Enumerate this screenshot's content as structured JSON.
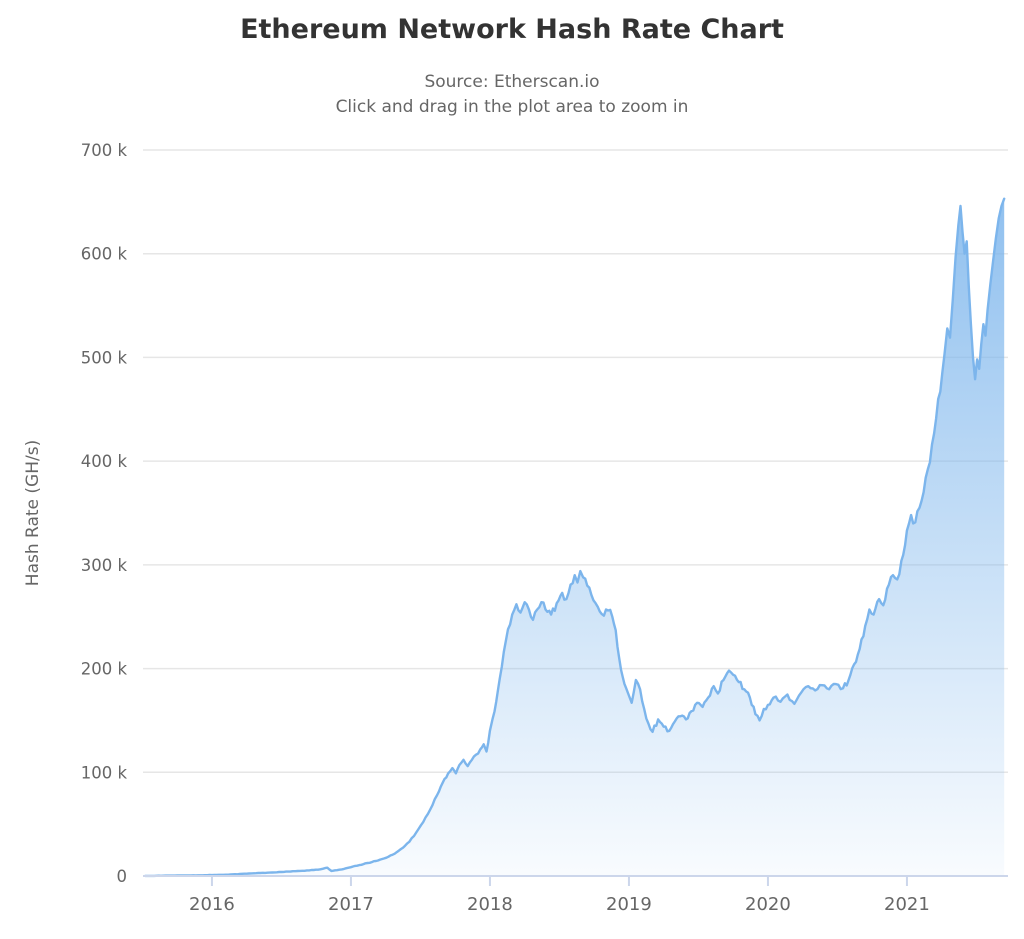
{
  "header": {
    "title": "Ethereum Network Hash Rate Chart",
    "subtitle_source": "Source: Etherscan.io",
    "subtitle_hint": "Click and drag in the plot area to zoom in"
  },
  "colors": {
    "series_line": "#7cb5ec",
    "fill_top": "rgba(124,181,236,0.9)",
    "fill_bottom": "rgba(124,181,236,0.05)",
    "gridline": "#e6e6e6",
    "axis_line": "#ccd6eb",
    "tick_mark": "#ccd6eb",
    "label_text": "#666666",
    "title_text": "#333333",
    "background": "#ffffff"
  },
  "chart_data": {
    "type": "area",
    "title": "Ethereum Network Hash Rate Chart",
    "subtitle": [
      "Source: Etherscan.io",
      "Click and drag in the plot area to zoom in"
    ],
    "xlabel": "",
    "ylabel": "Hash Rate (GH/s)",
    "legend": "none",
    "grid": "horizontal",
    "x_unit": "decimal year",
    "values_unit": "thousand GH/s (axis shows k)",
    "xlim": [
      2015.504,
      2021.727
    ],
    "ylim": [
      0,
      700
    ],
    "x_ticks": [
      {
        "value": 2016,
        "label": "2016"
      },
      {
        "value": 2017,
        "label": "2017"
      },
      {
        "value": 2018,
        "label": "2018"
      },
      {
        "value": 2019,
        "label": "2019"
      },
      {
        "value": 2020,
        "label": "2020"
      },
      {
        "value": 2021,
        "label": "2021"
      }
    ],
    "y_ticks": [
      {
        "value": 0,
        "label": "0"
      },
      {
        "value": 100,
        "label": "100 k"
      },
      {
        "value": 200,
        "label": "200 k"
      },
      {
        "value": 300,
        "label": "300 k"
      },
      {
        "value": 400,
        "label": "400 k"
      },
      {
        "value": 500,
        "label": "500 k"
      },
      {
        "value": 600,
        "label": "600 k"
      },
      {
        "value": 700,
        "label": "700 k"
      }
    ],
    "series": [
      {
        "name": "Hash Rate",
        "color": "#7cb5ec",
        "points": [
          [
            2015.52,
            0.1
          ],
          [
            2015.6,
            0.2
          ],
          [
            2015.7,
            0.35
          ],
          [
            2015.8,
            0.5
          ],
          [
            2015.9,
            0.65
          ],
          [
            2016.0,
            0.9
          ],
          [
            2016.1,
            1.3
          ],
          [
            2016.2,
            1.9
          ],
          [
            2016.3,
            2.6
          ],
          [
            2016.4,
            3.2
          ],
          [
            2016.5,
            3.9
          ],
          [
            2016.6,
            4.6
          ],
          [
            2016.7,
            5.4
          ],
          [
            2016.78,
            6.5
          ],
          [
            2016.83,
            8.0
          ],
          [
            2016.86,
            4.8
          ],
          [
            2016.9,
            5.6
          ],
          [
            2016.95,
            6.8
          ],
          [
            2017.0,
            8.5
          ],
          [
            2017.06,
            10.5
          ],
          [
            2017.12,
            12.5
          ],
          [
            2017.18,
            14.5
          ],
          [
            2017.24,
            17
          ],
          [
            2017.3,
            20.5
          ],
          [
            2017.36,
            26
          ],
          [
            2017.42,
            33
          ],
          [
            2017.47,
            42
          ],
          [
            2017.52,
            52
          ],
          [
            2017.57,
            64
          ],
          [
            2017.62,
            78
          ],
          [
            2017.66,
            90
          ],
          [
            2017.7,
            99
          ],
          [
            2017.73,
            104
          ],
          [
            2017.755,
            99
          ],
          [
            2017.78,
            107
          ],
          [
            2017.81,
            112
          ],
          [
            2017.84,
            106
          ],
          [
            2017.87,
            112
          ],
          [
            2017.9,
            117
          ],
          [
            2017.93,
            122
          ],
          [
            2017.955,
            127
          ],
          [
            2017.975,
            120
          ],
          [
            2018.0,
            140
          ],
          [
            2018.02,
            152
          ],
          [
            2018.045,
            168
          ],
          [
            2018.07,
            190
          ],
          [
            2018.1,
            216
          ],
          [
            2018.13,
            238
          ],
          [
            2018.16,
            252
          ],
          [
            2018.19,
            262
          ],
          [
            2018.22,
            254
          ],
          [
            2018.25,
            264
          ],
          [
            2018.28,
            257
          ],
          [
            2018.31,
            247
          ],
          [
            2018.34,
            257
          ],
          [
            2018.37,
            264
          ],
          [
            2018.4,
            257
          ],
          [
            2018.44,
            252
          ],
          [
            2018.48,
            263
          ],
          [
            2018.52,
            273
          ],
          [
            2018.55,
            267
          ],
          [
            2018.58,
            281
          ],
          [
            2018.61,
            290
          ],
          [
            2018.63,
            283
          ],
          [
            2018.65,
            294
          ],
          [
            2018.67,
            288
          ],
          [
            2018.7,
            280
          ],
          [
            2018.73,
            271
          ],
          [
            2018.76,
            263
          ],
          [
            2018.79,
            255
          ],
          [
            2018.82,
            251
          ],
          [
            2018.85,
            256
          ],
          [
            2018.88,
            250
          ],
          [
            2018.905,
            237
          ],
          [
            2018.93,
            210
          ],
          [
            2018.955,
            192
          ],
          [
            2018.98,
            181
          ],
          [
            2019.0,
            174
          ],
          [
            2019.02,
            167
          ],
          [
            2019.05,
            189
          ],
          [
            2019.08,
            180
          ],
          [
            2019.11,
            161
          ],
          [
            2019.14,
            147
          ],
          [
            2019.17,
            139
          ],
          [
            2019.21,
            151
          ],
          [
            2019.25,
            144
          ],
          [
            2019.29,
            140
          ],
          [
            2019.33,
            149
          ],
          [
            2019.37,
            154
          ],
          [
            2019.41,
            151
          ],
          [
            2019.45,
            159
          ],
          [
            2019.49,
            167
          ],
          [
            2019.53,
            163
          ],
          [
            2019.57,
            172
          ],
          [
            2019.61,
            183
          ],
          [
            2019.64,
            176
          ],
          [
            2019.68,
            189
          ],
          [
            2019.72,
            198
          ],
          [
            2019.75,
            194
          ],
          [
            2019.79,
            187
          ],
          [
            2019.83,
            180
          ],
          [
            2019.87,
            172
          ],
          [
            2019.91,
            156
          ],
          [
            2019.94,
            150
          ],
          [
            2019.97,
            161
          ],
          [
            2020.0,
            165
          ],
          [
            2020.04,
            172
          ],
          [
            2020.09,
            168
          ],
          [
            2020.14,
            175
          ],
          [
            2020.19,
            166
          ],
          [
            2020.24,
            177
          ],
          [
            2020.29,
            183
          ],
          [
            2020.34,
            179
          ],
          [
            2020.39,
            184
          ],
          [
            2020.44,
            180
          ],
          [
            2020.49,
            185
          ],
          [
            2020.54,
            181
          ],
          [
            2020.58,
            189
          ],
          [
            2020.62,
            204
          ],
          [
            2020.66,
            219
          ],
          [
            2020.7,
            241
          ],
          [
            2020.73,
            257
          ],
          [
            2020.76,
            252
          ],
          [
            2020.8,
            267
          ],
          [
            2020.83,
            261
          ],
          [
            2020.87,
            281
          ],
          [
            2020.9,
            290
          ],
          [
            2020.93,
            286
          ],
          [
            2020.96,
            304
          ],
          [
            2021.0,
            333
          ],
          [
            2021.03,
            348
          ],
          [
            2021.06,
            341
          ],
          [
            2021.09,
            355
          ],
          [
            2021.12,
            370
          ],
          [
            2021.15,
            392
          ],
          [
            2021.18,
            416
          ],
          [
            2021.21,
            441
          ],
          [
            2021.24,
            467
          ],
          [
            2021.27,
            503
          ],
          [
            2021.29,
            528
          ],
          [
            2021.31,
            519
          ],
          [
            2021.33,
            556
          ],
          [
            2021.35,
            597
          ],
          [
            2021.37,
            628
          ],
          [
            2021.385,
            646
          ],
          [
            2021.4,
            621
          ],
          [
            2021.415,
            600
          ],
          [
            2021.43,
            612
          ],
          [
            2021.445,
            568
          ],
          [
            2021.46,
            532
          ],
          [
            2021.475,
            500
          ],
          [
            2021.49,
            479
          ],
          [
            2021.505,
            498
          ],
          [
            2021.52,
            489
          ],
          [
            2021.535,
            513
          ],
          [
            2021.55,
            532
          ],
          [
            2021.565,
            521
          ],
          [
            2021.58,
            546
          ],
          [
            2021.6,
            570
          ],
          [
            2021.62,
            593
          ],
          [
            2021.64,
            615
          ],
          [
            2021.66,
            634
          ],
          [
            2021.68,
            646
          ],
          [
            2021.7,
            653
          ]
        ]
      }
    ]
  }
}
